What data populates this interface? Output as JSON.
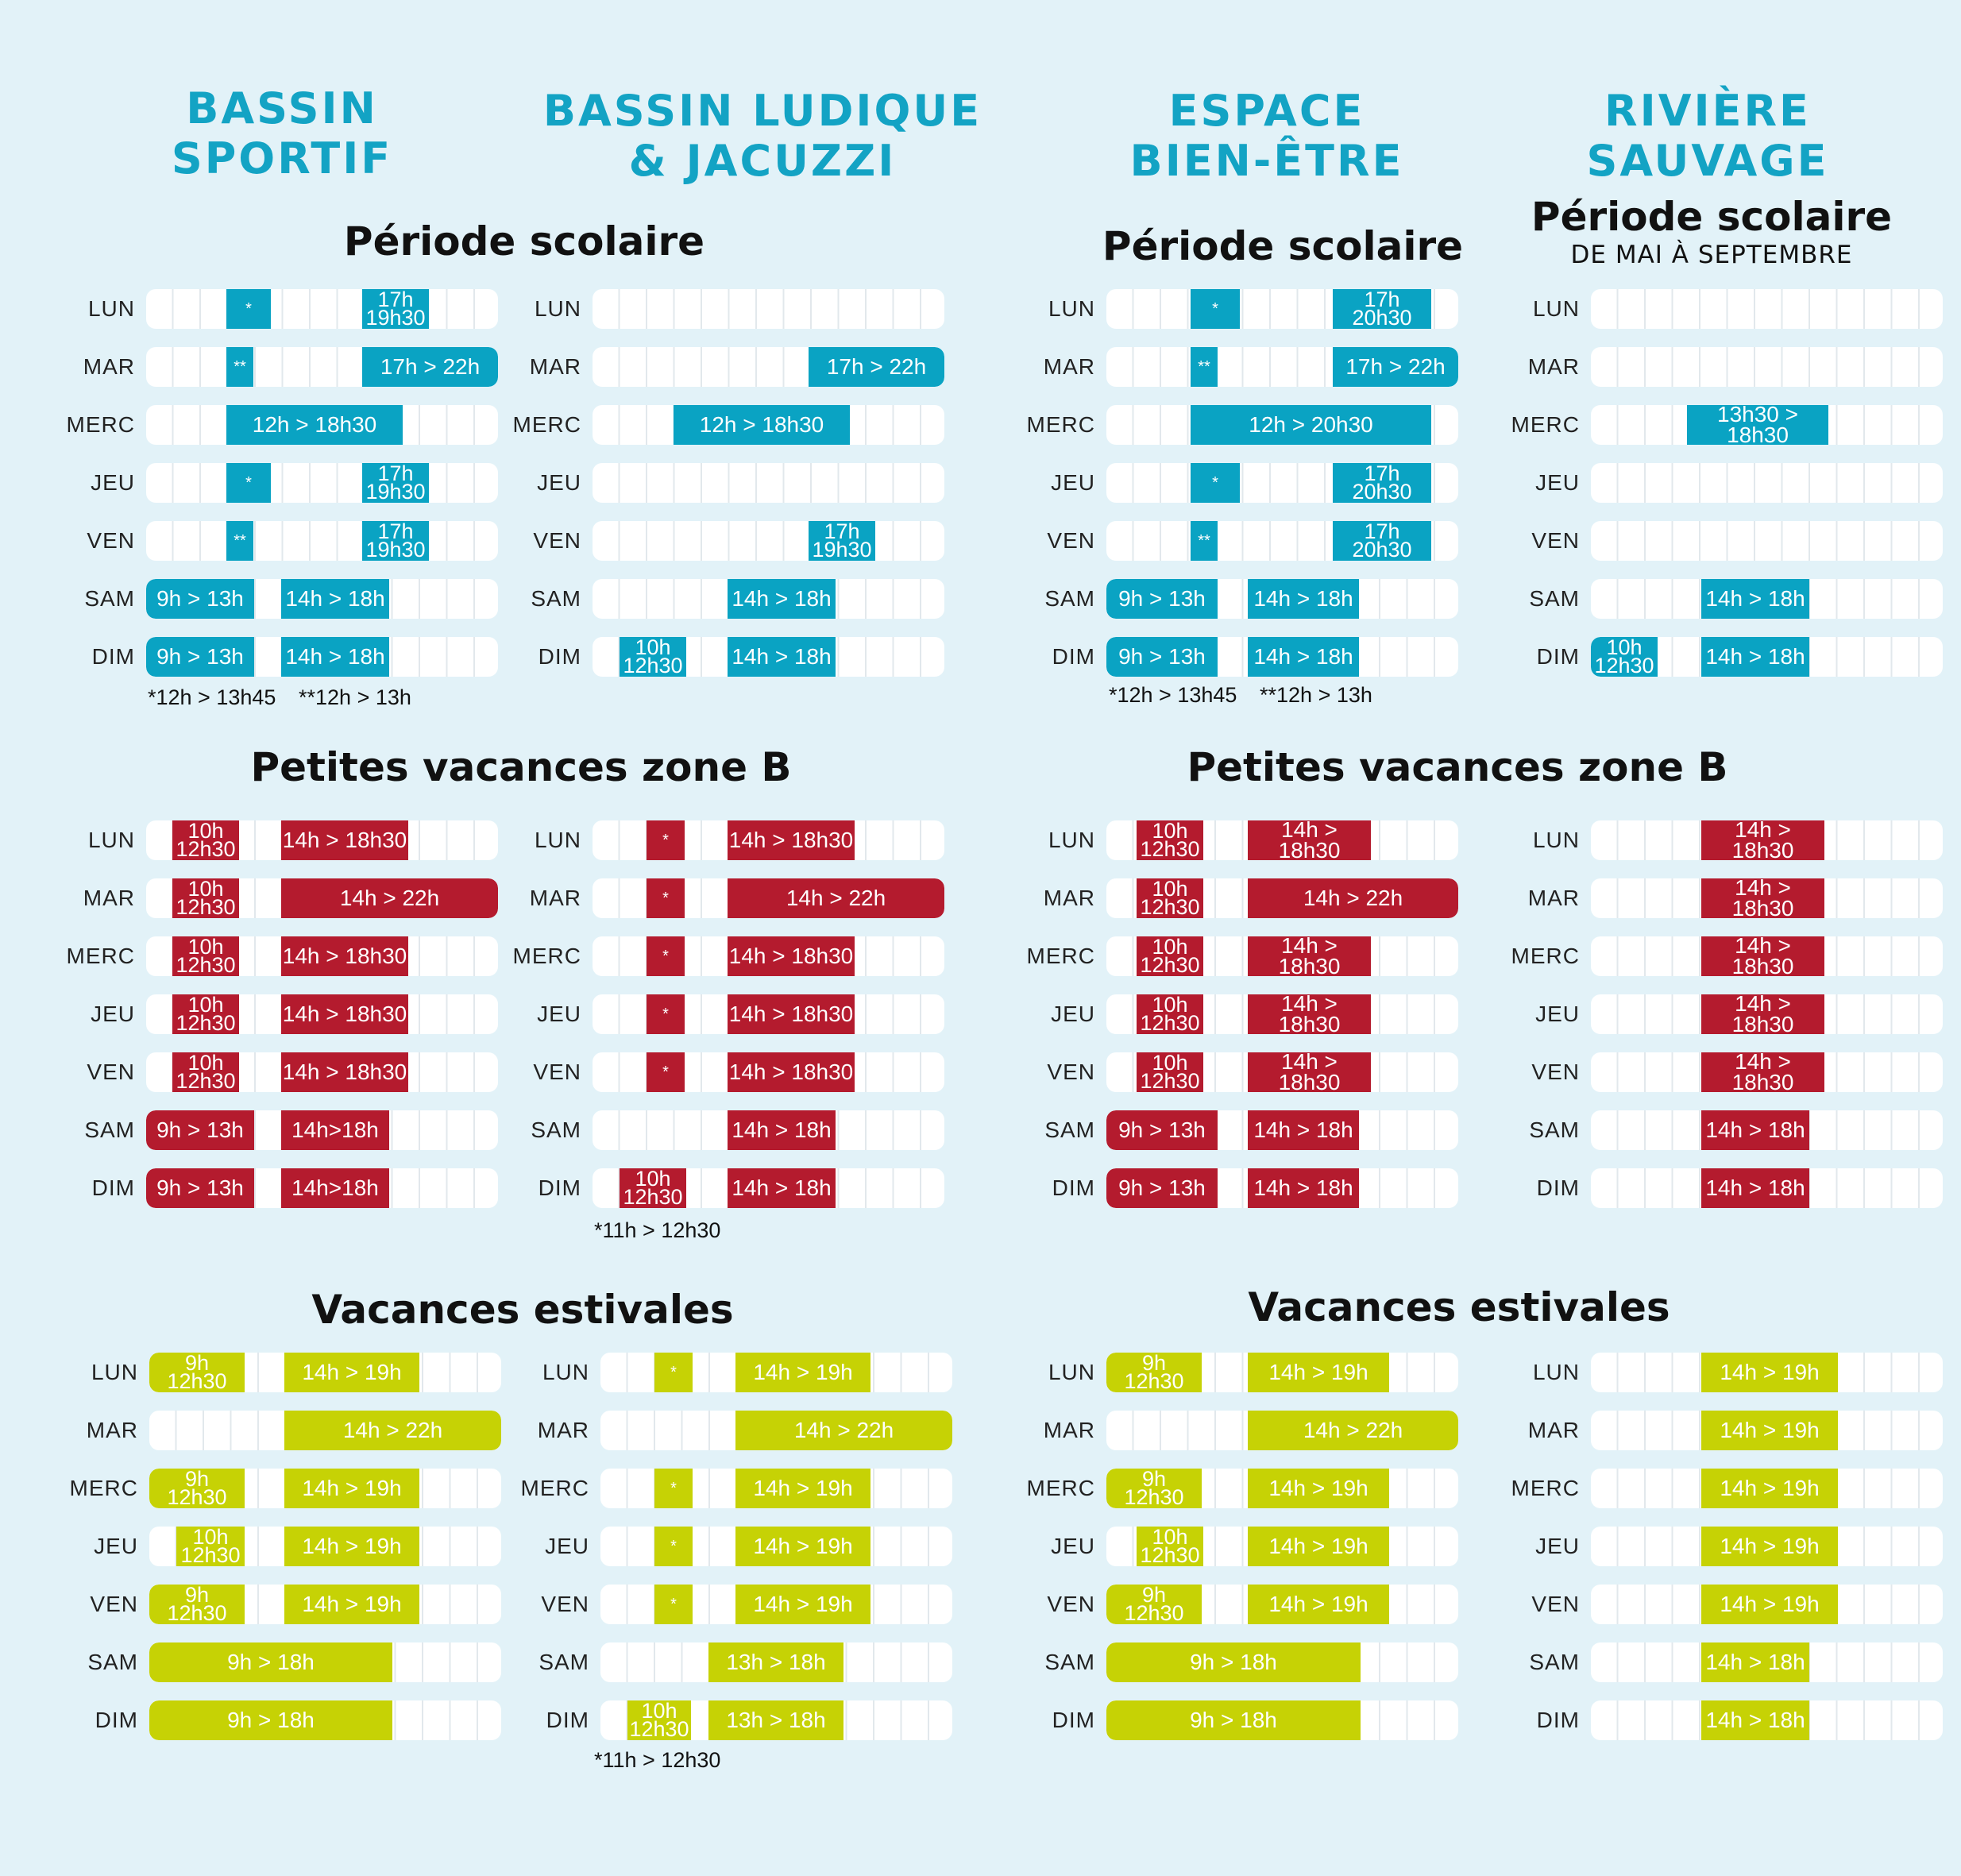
{
  "colors": {
    "blue": "#0aa3c3",
    "red": "#b41b2e",
    "green": "#c6d205",
    "title": "#13a3c4",
    "background": "#e2f2f8"
  },
  "titles": {
    "bassin_sportif": [
      "BASSIN",
      "SPORTIF"
    ],
    "bassin_ludique": [
      "BASSIN LUDIQUE",
      "& JACUZZI"
    ],
    "espace_bien_etre": [
      "ESPACE",
      "BIEN-ÊTRE"
    ],
    "riviere_sauvage": [
      "RIVIÈRE",
      "SAUVAGE"
    ]
  },
  "section_titles": {
    "scolaire": "Période scolaire",
    "petites": "Petites vacances zone B",
    "estivales": "Vacances estivales",
    "riviere_scolaire_sub": "DE MAI À SEPTEMBRE"
  },
  "notes": {
    "sportif_note_1": "*12h > 13h45",
    "sportif_note_2": "**12h > 13h",
    "bienetre_note_1": "*12h > 13h45",
    "bienetre_note_2": "**12h > 13h",
    "ludique_petites_note": "*11h > 12h30",
    "ludique_estivales_note": "*11h > 12h30"
  },
  "days": [
    "LUN",
    "MAR",
    "MERC",
    "JEU",
    "VEN",
    "SAM",
    "DIM"
  ],
  "grids": [
    {
      "id": "sportif-scolaire",
      "color": "blue",
      "rows": [
        [
          {
            "t": "*"
          },
          {
            "t": "17h|19h30"
          }
        ],
        [
          {
            "t": "**"
          },
          {
            "t": "17h > 22h"
          }
        ],
        [
          {
            "t": "12h > 18h30"
          }
        ],
        [
          {
            "t": "*"
          },
          {
            "t": "17h|19h30"
          }
        ],
        [
          {
            "t": "**"
          },
          {
            "t": "17h|19h30"
          }
        ],
        [
          {
            "t": "9h > 13h"
          },
          {
            "t": "14h > 18h"
          }
        ],
        [
          {
            "t": "9h > 13h"
          },
          {
            "t": "14h > 18h"
          }
        ]
      ]
    },
    {
      "id": "ludique-scolaire",
      "color": "blue",
      "rows": [
        [],
        [
          {
            "t": "17h > 22h"
          }
        ],
        [
          {
            "t": "12h > 18h30"
          }
        ],
        [],
        [
          {
            "t": "17h|19h30"
          }
        ],
        [
          {
            "t": "14h > 18h"
          }
        ],
        [
          {
            "t": "10h|12h30"
          },
          {
            "t": "14h > 18h"
          }
        ]
      ]
    },
    {
      "id": "bienetre-scolaire",
      "color": "blue",
      "rows": [
        [
          {
            "t": "*"
          },
          {
            "t": "17h|20h30"
          }
        ],
        [
          {
            "t": "**"
          },
          {
            "t": "17h > 22h"
          }
        ],
        [
          {
            "t": "12h > 20h30"
          }
        ],
        [
          {
            "t": "*"
          },
          {
            "t": "17h|20h30"
          }
        ],
        [
          {
            "t": "**"
          },
          {
            "t": "17h|20h30"
          }
        ],
        [
          {
            "t": "9h > 13h"
          },
          {
            "t": "14h > 18h"
          }
        ],
        [
          {
            "t": "9h > 13h"
          },
          {
            "t": "14h > 18h"
          }
        ]
      ]
    },
    {
      "id": "riviere-scolaire",
      "color": "blue",
      "rows": [
        [],
        [],
        [
          {
            "t": "13h30 > 18h30"
          }
        ],
        [],
        [],
        [
          {
            "t": "14h > 18h"
          }
        ],
        [
          {
            "t": "10h|12h30"
          },
          {
            "t": "14h > 18h"
          }
        ]
      ]
    },
    {
      "id": "sportif-petites",
      "color": "red",
      "rows": [
        [
          {
            "t": "10h|12h30"
          },
          {
            "t": "14h > 18h30"
          }
        ],
        [
          {
            "t": "10h|12h30"
          },
          {
            "t": "14h > 22h"
          }
        ],
        [
          {
            "t": "10h|12h30"
          },
          {
            "t": "14h > 18h30"
          }
        ],
        [
          {
            "t": "10h|12h30"
          },
          {
            "t": "14h > 18h30"
          }
        ],
        [
          {
            "t": "10h|12h30"
          },
          {
            "t": "14h > 18h30"
          }
        ],
        [
          {
            "t": "9h > 13h"
          },
          {
            "t": "14h>18h"
          }
        ],
        [
          {
            "t": "9h > 13h"
          },
          {
            "t": "14h>18h"
          }
        ]
      ]
    },
    {
      "id": "ludique-petites",
      "color": "red",
      "rows": [
        [
          {
            "t": "*"
          },
          {
            "t": "14h > 18h30"
          }
        ],
        [
          {
            "t": "*"
          },
          {
            "t": "14h > 22h"
          }
        ],
        [
          {
            "t": "*"
          },
          {
            "t": "14h > 18h30"
          }
        ],
        [
          {
            "t": "*"
          },
          {
            "t": "14h > 18h30"
          }
        ],
        [
          {
            "t": "*"
          },
          {
            "t": "14h > 18h30"
          }
        ],
        [
          {
            "t": "14h > 18h"
          }
        ],
        [
          {
            "t": "10h|12h30"
          },
          {
            "t": "14h > 18h"
          }
        ]
      ]
    },
    {
      "id": "bienetre-petites",
      "color": "red",
      "rows": [
        [
          {
            "t": "10h|12h30"
          },
          {
            "t": "14h > 18h30"
          }
        ],
        [
          {
            "t": "10h|12h30"
          },
          {
            "t": "14h > 22h"
          }
        ],
        [
          {
            "t": "10h|12h30"
          },
          {
            "t": "14h > 18h30"
          }
        ],
        [
          {
            "t": "10h|12h30"
          },
          {
            "t": "14h > 18h30"
          }
        ],
        [
          {
            "t": "10h|12h30"
          },
          {
            "t": "14h > 18h30"
          }
        ],
        [
          {
            "t": "9h > 13h"
          },
          {
            "t": "14h > 18h"
          }
        ],
        [
          {
            "t": "9h > 13h"
          },
          {
            "t": "14h > 18h"
          }
        ]
      ]
    },
    {
      "id": "riviere-petites",
      "color": "red",
      "rows": [
        [
          {
            "t": "14h > 18h30"
          }
        ],
        [
          {
            "t": "14h > 18h30"
          }
        ],
        [
          {
            "t": "14h > 18h30"
          }
        ],
        [
          {
            "t": "14h > 18h30"
          }
        ],
        [
          {
            "t": "14h > 18h30"
          }
        ],
        [
          {
            "t": "14h > 18h"
          }
        ],
        [
          {
            "t": "14h > 18h"
          }
        ]
      ]
    },
    {
      "id": "sportif-estivales",
      "color": "green",
      "rows": [
        [
          {
            "t": "9h|12h30"
          },
          {
            "t": "14h > 19h"
          }
        ],
        [
          {
            "t": "14h > 22h"
          }
        ],
        [
          {
            "t": "9h|12h30"
          },
          {
            "t": "14h > 19h"
          }
        ],
        [
          {
            "t": "10h|12h30"
          },
          {
            "t": "14h > 19h"
          }
        ],
        [
          {
            "t": "9h|12h30"
          },
          {
            "t": "14h > 19h"
          }
        ],
        [
          {
            "t": "9h > 18h"
          }
        ],
        [
          {
            "t": "9h > 18h"
          }
        ]
      ]
    },
    {
      "id": "ludique-estivales",
      "color": "green",
      "rows": [
        [
          {
            "t": "*"
          },
          {
            "t": "14h > 19h"
          }
        ],
        [
          {
            "t": "14h > 22h"
          }
        ],
        [
          {
            "t": "*"
          },
          {
            "t": "14h > 19h"
          }
        ],
        [
          {
            "t": "*"
          },
          {
            "t": "14h > 19h"
          }
        ],
        [
          {
            "t": "*"
          },
          {
            "t": "14h > 19h"
          }
        ],
        [
          {
            "t": "13h > 18h"
          }
        ],
        [
          {
            "t": "10h|12h30"
          },
          {
            "t": "13h > 18h"
          }
        ]
      ]
    },
    {
      "id": "bienetre-estivales",
      "color": "green",
      "rows": [
        [
          {
            "t": "9h|12h30"
          },
          {
            "t": "14h > 19h"
          }
        ],
        [
          {
            "t": "14h > 22h"
          }
        ],
        [
          {
            "t": "9h|12h30"
          },
          {
            "t": "14h > 19h"
          }
        ],
        [
          {
            "t": "10h|12h30"
          },
          {
            "t": "14h > 19h"
          }
        ],
        [
          {
            "t": "9h|12h30"
          },
          {
            "t": "14h > 19h"
          }
        ],
        [
          {
            "t": "9h > 18h"
          }
        ],
        [
          {
            "t": "9h > 18h"
          }
        ]
      ]
    },
    {
      "id": "riviere-estivales",
      "color": "green",
      "rows": [
        [
          {
            "t": "14h > 19h"
          }
        ],
        [
          {
            "t": "14h > 19h"
          }
        ],
        [
          {
            "t": "14h > 19h"
          }
        ],
        [
          {
            "t": "14h > 19h"
          }
        ],
        [
          {
            "t": "14h > 19h"
          }
        ],
        [
          {
            "t": "14h > 18h"
          }
        ],
        [
          {
            "t": "14h > 18h"
          }
        ]
      ]
    }
  ]
}
